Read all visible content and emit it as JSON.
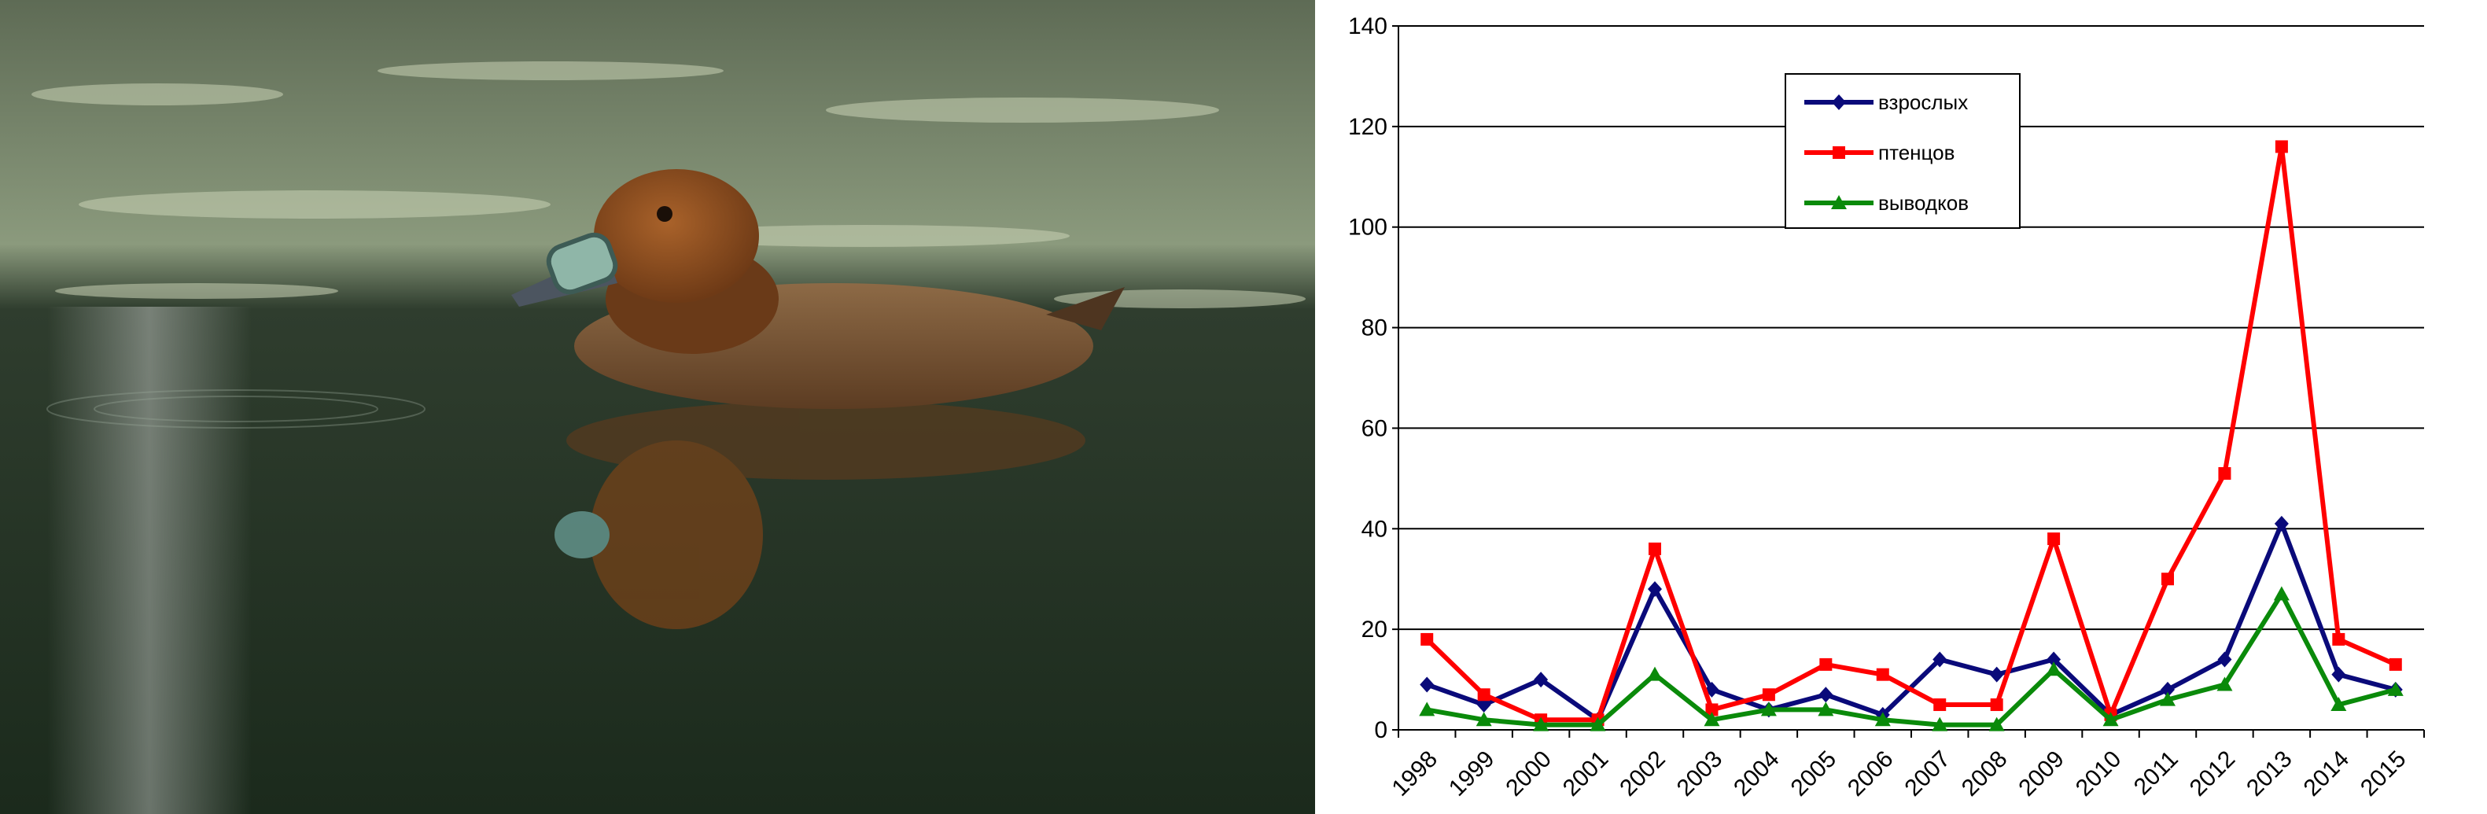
{
  "photo": {
    "subject": "duck-photo",
    "colors": {
      "water_dark": "#1b2a1c",
      "water_light": "#6f7f63",
      "duck_head": "#8a4b1f",
      "duck_body": "#7a5a3c",
      "nasal_tag": "#8fb6a8"
    }
  },
  "chart_data": {
    "type": "line",
    "title": "",
    "xlabel": "",
    "ylabel": "",
    "categories": [
      "1998",
      "1999",
      "2000",
      "2001",
      "2002",
      "2003",
      "2004",
      "2005",
      "2006",
      "2007",
      "2008",
      "2009",
      "2010",
      "2011",
      "2012",
      "2013",
      "2014",
      "2015"
    ],
    "ylim": [
      0,
      140
    ],
    "yticks": [
      0,
      20,
      40,
      60,
      80,
      100,
      120,
      140
    ],
    "grid": true,
    "legend_position": "top-center",
    "series": [
      {
        "name": "взрослых",
        "color": "#0a0a7a",
        "marker": "diamond",
        "values": [
          9,
          5,
          10,
          2,
          28,
          8,
          4,
          7,
          3,
          14,
          11,
          14,
          3,
          8,
          14,
          41,
          11,
          8
        ]
      },
      {
        "name": "птенцов",
        "color": "#ff0000",
        "marker": "square",
        "values": [
          18,
          7,
          2,
          2,
          36,
          4,
          7,
          13,
          11,
          5,
          5,
          38,
          3,
          30,
          51,
          116,
          18,
          13
        ]
      },
      {
        "name": "выводков",
        "color": "#0a8a0a",
        "marker": "triangle",
        "values": [
          4,
          2,
          1,
          1,
          11,
          2,
          4,
          4,
          2,
          1,
          1,
          12,
          2,
          6,
          9,
          27,
          5,
          8
        ]
      }
    ]
  }
}
